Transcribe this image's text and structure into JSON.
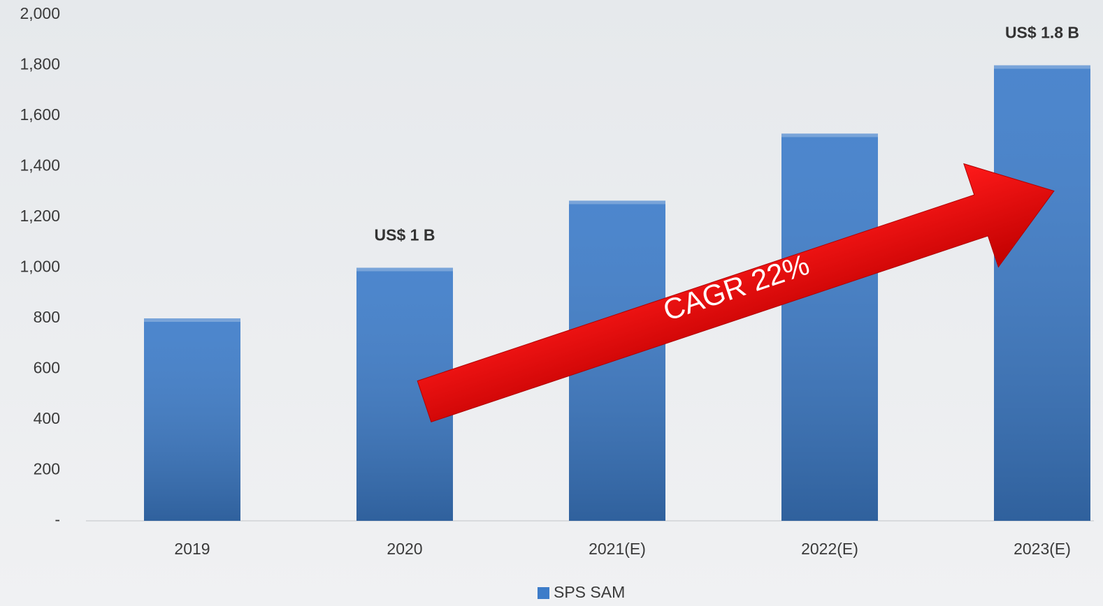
{
  "chart_data": {
    "type": "bar",
    "categories": [
      "2019",
      "2020",
      "2021(E)",
      "2022(E)",
      "2023(E)"
    ],
    "series": [
      {
        "name": "SPS SAM",
        "color": "#3d7cc9",
        "values": [
          800,
          1000,
          1265,
          1530,
          1800
        ],
        "value_labels": [
          null,
          "US$ 1 B",
          null,
          null,
          "US$ 1.8 B"
        ]
      }
    ],
    "ylim": [
      0,
      2000
    ],
    "yticks": [
      {
        "value": 0,
        "label": "-"
      },
      200,
      400,
      600,
      800,
      {
        "value": 1000,
        "label": "1,000"
      },
      {
        "value": 1200,
        "label": "1,200"
      },
      {
        "value": 1400,
        "label": "1,400"
      },
      {
        "value": 1600,
        "label": "1,600"
      },
      {
        "value": 1800,
        "label": "1,800"
      },
      {
        "value": 2000,
        "label": "2,000"
      }
    ],
    "annotations": [
      "CAGR 22%"
    ],
    "legend": "bottom",
    "grid": false
  }
}
